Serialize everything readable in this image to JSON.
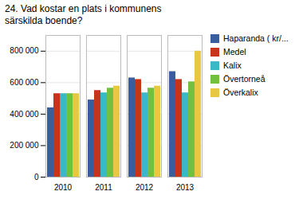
{
  "chart_data": {
    "type": "bar",
    "title": "24. Vad kostar en plats i kommunens\nsärskilda boende?",
    "categories": [
      "2010",
      "2011",
      "2012",
      "2013"
    ],
    "series": [
      {
        "name": "Haparanda ( kr/...",
        "color": "#3a5da0",
        "values": [
          440000,
          490000,
          630000,
          670000
        ]
      },
      {
        "name": "Medel",
        "color": "#c8341a",
        "values": [
          530000,
          550000,
          620000,
          620000
        ]
      },
      {
        "name": "Kalix",
        "color": "#3ab8c8",
        "values": [
          530000,
          535000,
          535000,
          535000
        ]
      },
      {
        "name": "Övertorneå",
        "color": "#72c040",
        "values": [
          530000,
          565000,
          565000,
          605000
        ]
      },
      {
        "name": "Överkalix",
        "color": "#e8c840",
        "values": [
          530000,
          578000,
          578000,
          800000
        ]
      }
    ],
    "ylim": [
      0,
      900000
    ],
    "yticks": [
      0,
      {
        "value": 200000,
        "label": "200 000"
      },
      {
        "value": 400000,
        "label": "400 000"
      },
      {
        "value": 600000,
        "label": "600 000"
      },
      {
        "value": 800000,
        "label": "800 000"
      }
    ],
    "grid": true,
    "legend": "right"
  }
}
